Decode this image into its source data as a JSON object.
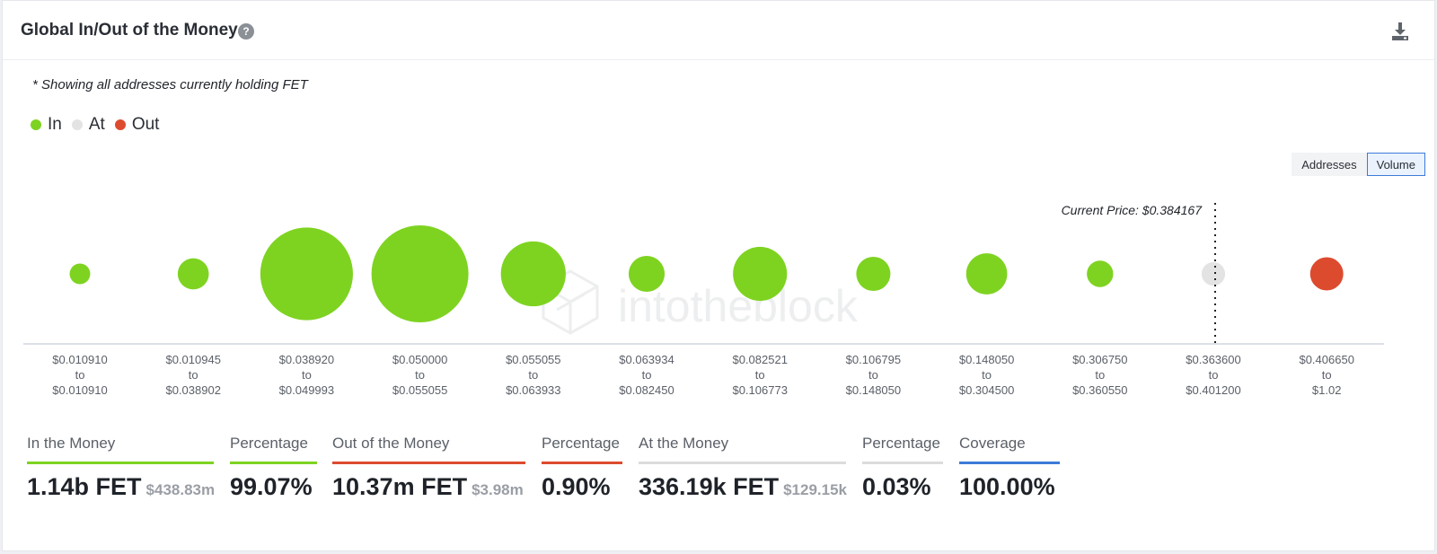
{
  "title": "Global In/Out of the Money",
  "help_icon": "question-circle-icon",
  "download_icon": "download-icon",
  "note": "* Showing all addresses currently holding FET",
  "legend": [
    {
      "label": "In",
      "color": "#7ed321"
    },
    {
      "label": "At",
      "color": "#e3e3e3"
    },
    {
      "label": "Out",
      "color": "#dd4b2f"
    }
  ],
  "toggle": {
    "addresses": "Addresses",
    "volume": "Volume",
    "selected": "Volume"
  },
  "watermark": "intotheblock",
  "chart_data": {
    "type": "bubble",
    "current_price_label": "Current Price: $0.384167",
    "current_price": 0.384167,
    "ranges": [
      {
        "from": "$0.010910",
        "to": "$0.010910",
        "status": "In",
        "relative_volume": 0.045
      },
      {
        "from": "$0.010945",
        "to": "$0.038902",
        "status": "In",
        "relative_volume": 0.103
      },
      {
        "from": "$0.038920",
        "to": "$0.049993",
        "status": "In",
        "relative_volume": 0.912
      },
      {
        "from": "$0.050000",
        "to": "$0.055055",
        "status": "In",
        "relative_volume": 1.0
      },
      {
        "from": "$0.055055",
        "to": "$0.063933",
        "status": "In",
        "relative_volume": 0.448
      },
      {
        "from": "$0.063934",
        "to": "$0.082450",
        "status": "In",
        "relative_volume": 0.138
      },
      {
        "from": "$0.082521",
        "to": "$0.106773",
        "status": "In",
        "relative_volume": 0.31
      },
      {
        "from": "$0.106795",
        "to": "$0.148050",
        "status": "In",
        "relative_volume": 0.124
      },
      {
        "from": "$0.148050",
        "to": "$0.304500",
        "status": "In",
        "relative_volume": 0.179
      },
      {
        "from": "$0.306750",
        "to": "$0.360550",
        "status": "In",
        "relative_volume": 0.074
      },
      {
        "from": "$0.363600",
        "to": "$0.401200",
        "status": "At",
        "relative_volume": 0.059
      },
      {
        "from": "$0.406650",
        "to": "$1.02",
        "status": "Out",
        "relative_volume": 0.117
      }
    ],
    "to_label": "to"
  },
  "stats": [
    {
      "label": "In the Money",
      "value": "1.14b FET",
      "sub": "$438.83m",
      "color": "#7ed321"
    },
    {
      "label": "Percentage",
      "value": "99.07%",
      "sub": "",
      "color": "#7ed321"
    },
    {
      "label": "Out of the Money",
      "value": "10.37m FET",
      "sub": "$3.98m",
      "color": "#dd4b2f"
    },
    {
      "label": "Percentage",
      "value": "0.90%",
      "sub": "",
      "color": "#dd4b2f"
    },
    {
      "label": "At the Money",
      "value": "336.19k FET",
      "sub": "$129.15k",
      "color": "#dcdcdc"
    },
    {
      "label": "Percentage",
      "value": "0.03%",
      "sub": "",
      "color": "#dcdcdc"
    },
    {
      "label": "Coverage",
      "value": "100.00%",
      "sub": "",
      "color": "#3c7bd8"
    }
  ]
}
